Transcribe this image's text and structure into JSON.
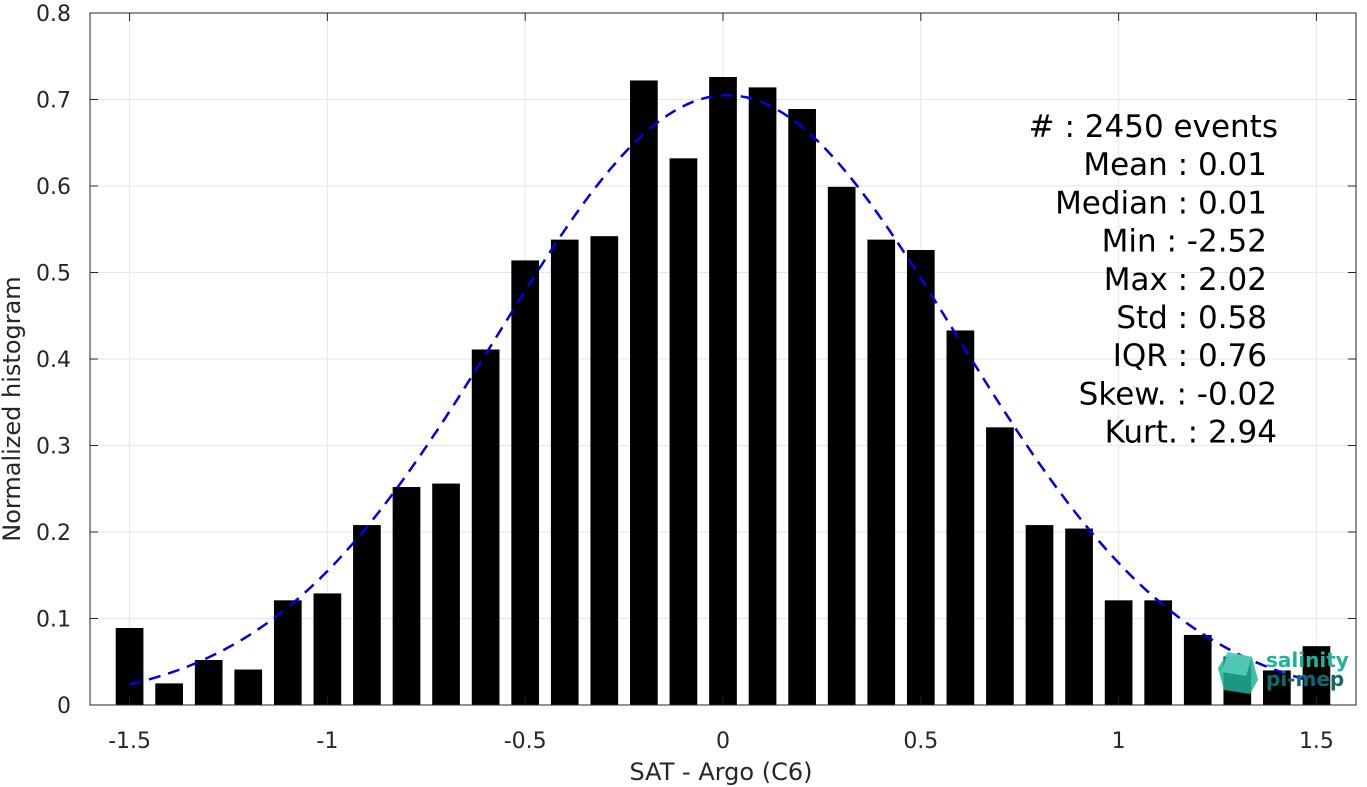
{
  "chart_data": {
    "type": "bar",
    "xlabel": "SAT - Argo (C6)",
    "ylabel": "Normalized histogram",
    "xlim": [
      -1.6,
      1.6
    ],
    "ylim": [
      0,
      0.8
    ],
    "grid": true,
    "x": [
      -1.5,
      -1.4,
      -1.3,
      -1.2,
      -1.1,
      -1.0,
      -0.9,
      -0.8,
      -0.7,
      -0.6,
      -0.5,
      -0.4,
      -0.3,
      -0.2,
      -0.1,
      0.0,
      0.1,
      0.2,
      0.3,
      0.4,
      0.5,
      0.6,
      0.7,
      0.8,
      0.9,
      1.0,
      1.1,
      1.2,
      1.3,
      1.4,
      1.5
    ],
    "values": [
      0.089,
      0.025,
      0.052,
      0.041,
      0.121,
      0.129,
      0.208,
      0.252,
      0.256,
      0.411,
      0.514,
      0.538,
      0.542,
      0.722,
      0.632,
      0.726,
      0.714,
      0.689,
      0.599,
      0.538,
      0.526,
      0.433,
      0.321,
      0.208,
      0.204,
      0.121,
      0.121,
      0.081,
      0.056,
      0.04,
      0.068
    ],
    "bar_color": "#000000",
    "fit": {
      "type": "normal",
      "mean": 0.01,
      "std": 0.58,
      "peak": 0.705,
      "style": "dashed",
      "color": "#0000e0"
    },
    "xticks": [
      -1.5,
      -1,
      -0.5,
      0,
      0.5,
      1,
      1.5
    ],
    "xtick_labels": [
      "-1.5",
      "-1",
      "-0.5",
      "0",
      "0.5",
      "1",
      "1.5"
    ],
    "yticks": [
      0,
      0.1,
      0.2,
      0.3,
      0.4,
      0.5,
      0.6,
      0.7,
      0.8
    ],
    "ytick_labels": [
      "0",
      "0.1",
      "0.2",
      "0.3",
      "0.4",
      "0.5",
      "0.6",
      "0.7",
      "0.8"
    ],
    "annotations": [
      "#  : 2450 events",
      "Mean : 0.01",
      "Median : 0.01",
      "Min : -2.52",
      "Max : 2.02",
      "Std : 0.58",
      "IQR : 0.76",
      "Skew. : -0.02",
      "Kurt. : 2.94"
    ]
  },
  "logo": {
    "line1": "salinity",
    "line2": "pi-mep",
    "color_primary": "#1fb39a",
    "color_secondary": "#0d6b6b"
  }
}
